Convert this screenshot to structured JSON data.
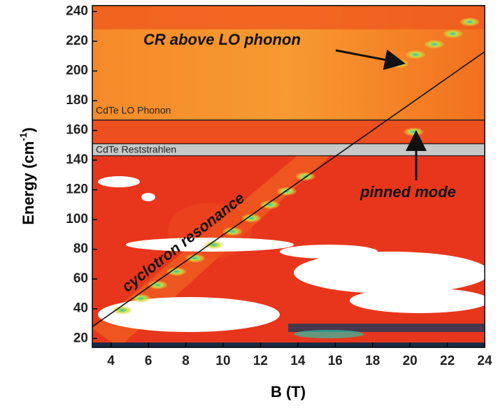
{
  "chart_data": {
    "type": "heatmap",
    "xlabel": "B (T)",
    "ylabel": "Energy (cm",
    "ylabel_sup": "-1",
    "ylabel_end": ")",
    "xlim": [
      3,
      24
    ],
    "ylim": [
      14,
      244
    ],
    "xticks": [
      4,
      6,
      8,
      10,
      12,
      14,
      16,
      18,
      20,
      22,
      24
    ],
    "yticks": [
      20,
      40,
      60,
      80,
      100,
      120,
      140,
      160,
      180,
      200,
      220,
      240
    ],
    "lo_phonon": {
      "label": "CdTe LO Phonon",
      "value": 167
    },
    "reststrahlen": {
      "label": "CdTe Reststrahlen",
      "values": [
        143,
        151
      ]
    },
    "fit_line": {
      "x": [
        3,
        24
      ],
      "y": [
        28,
        213
      ]
    },
    "resonance_points": {
      "x": [
        4.6,
        5.6,
        6.5,
        7.5,
        8.5,
        9.5,
        10.5,
        11.5,
        12.5,
        13.4,
        14.4,
        19.4,
        20.3,
        21.3,
        22.3,
        23.2,
        20.2
      ],
      "y": [
        39,
        47,
        56,
        65,
        74,
        83,
        92,
        101,
        110,
        119,
        129,
        205,
        211,
        218,
        225,
        233,
        159
      ]
    },
    "annotations": [
      "CR above LO phonon",
      "pinned mode",
      "cyclotron resonance"
    ]
  }
}
